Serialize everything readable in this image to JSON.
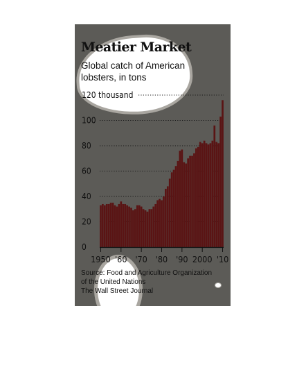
{
  "chart_data": {
    "type": "bar",
    "title": "Meatier Market",
    "subtitle": "Global catch of American lobsters, in tons",
    "ylabel": "",
    "xlabel": "",
    "ylim": [
      0,
      120
    ],
    "y_ticks": [
      "0",
      "20",
      "40",
      "60",
      "80",
      "100",
      "120 thousand"
    ],
    "x_ticks": [
      "1950",
      "'60",
      "'70",
      "'80",
      "'90",
      "2000",
      "'10"
    ],
    "x_tick_years": [
      1950,
      1960,
      1970,
      1980,
      1990,
      2000,
      2010
    ],
    "categories": [
      1950,
      1951,
      1952,
      1953,
      1954,
      1955,
      1956,
      1957,
      1958,
      1959,
      1960,
      1961,
      1962,
      1963,
      1964,
      1965,
      1966,
      1967,
      1968,
      1969,
      1970,
      1971,
      1972,
      1973,
      1974,
      1975,
      1976,
      1977,
      1978,
      1979,
      1980,
      1981,
      1982,
      1983,
      1984,
      1985,
      1986,
      1987,
      1988,
      1989,
      1990,
      1991,
      1992,
      1993,
      1994,
      1995,
      1996,
      1997,
      1998,
      1999,
      2000,
      2001,
      2002,
      2003,
      2004,
      2005,
      2006,
      2007,
      2008,
      2009,
      2010
    ],
    "values": [
      33,
      34,
      33,
      34,
      34,
      35,
      35,
      33,
      32,
      34,
      36,
      34,
      34,
      33,
      32,
      31,
      29,
      30,
      33,
      33,
      32,
      30,
      29,
      28,
      30,
      30,
      32,
      34,
      37,
      38,
      37,
      40,
      46,
      48,
      54,
      59,
      61,
      64,
      68,
      76,
      77,
      67,
      66,
      70,
      72,
      72,
      74,
      78,
      79,
      83,
      82,
      84,
      82,
      81,
      82,
      84,
      96,
      83,
      82,
      103,
      116
    ],
    "bar_color": "#5a1414",
    "grid": "dotted horizontal",
    "source_lines": [
      "Source: Food and Agriculture Organization",
      "of the United Nations",
      "The Wall Street Journal"
    ]
  }
}
